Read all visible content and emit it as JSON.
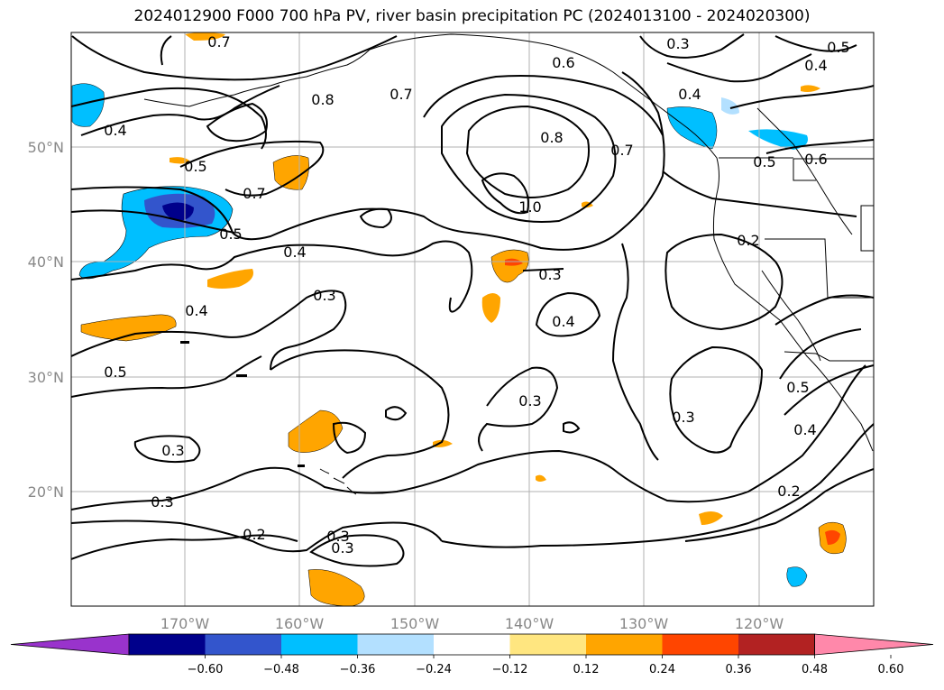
{
  "title": "2024012900 F000 700 hPa PV, river basin precipitation PC (2024013100 - 2024020300)",
  "lon_ticks": [
    "170°W",
    "160°W",
    "150°W",
    "140°W",
    "130°W",
    "120°W"
  ],
  "lat_ticks": [
    "50°N",
    "40°N",
    "30°N",
    "20°N"
  ],
  "colorbar": {
    "colors": [
      "#9933cc",
      "#00008b",
      "#3355cc",
      "#00bfff",
      "#b3e0ff",
      "#ffffff",
      "#ffe680",
      "#ffa500",
      "#ff4500",
      "#b22222",
      "#ff88aa"
    ],
    "labels": [
      "−0.60",
      "−0.48",
      "−0.36",
      "−0.24",
      "−0.12",
      "0.12",
      "0.24",
      "0.36",
      "0.48",
      "0.60"
    ]
  },
  "contour_labels": [
    "0.7",
    "0.6",
    "0.3",
    "0.5",
    "0.4",
    "0.8",
    "0.7",
    "0.4",
    "0.5",
    "0.7",
    "0.8",
    "1.0",
    "0.7",
    "0.4",
    "0.5",
    "0.6",
    "0.5",
    "0.2",
    "0.4",
    "0.3",
    "0.3",
    "0.4",
    "0.4",
    "0.5",
    "0.3",
    "0.3",
    "0.3",
    "0.3",
    "0.5",
    "0.4",
    "0.3",
    "0.2",
    "0.3",
    "0.2"
  ]
}
